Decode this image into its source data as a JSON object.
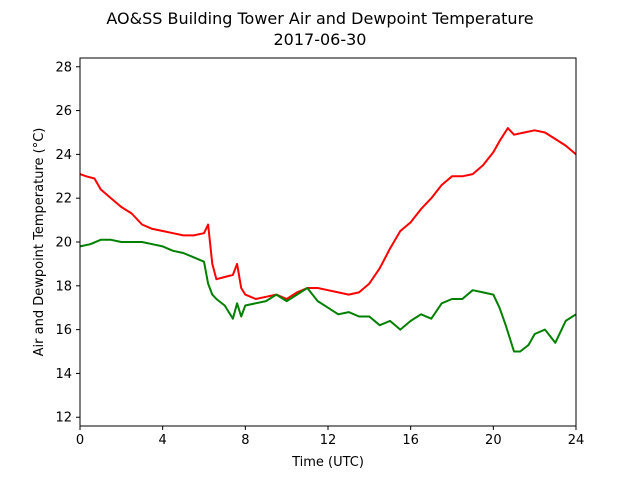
{
  "chart_data": {
    "type": "line",
    "title": "AO&SS Building Tower Air and Dewpoint Temperature",
    "subtitle": "2017-06-30",
    "xlabel": "Time (UTC)",
    "ylabel": "Air and Dewpoint Temperature (°C)",
    "xlim": [
      0,
      24
    ],
    "ylim": [
      11.6,
      28.4
    ],
    "xticks": [
      0,
      4,
      8,
      12,
      16,
      20,
      24
    ],
    "yticks": [
      12,
      14,
      16,
      18,
      20,
      22,
      24,
      26,
      28
    ],
    "grid": false,
    "series": [
      {
        "color": "#ff0000",
        "x": [
          0,
          0.3,
          0.7,
          1,
          1.5,
          2,
          2.5,
          3,
          3.5,
          4,
          4.5,
          5,
          5.5,
          6,
          6.2,
          6.4,
          6.6,
          7,
          7.4,
          7.6,
          7.8,
          8,
          8.5,
          9,
          9.5,
          10,
          10.5,
          11,
          11.5,
          12,
          12.5,
          13,
          13.5,
          14,
          14.5,
          15,
          15.5,
          16,
          16.5,
          17,
          17.5,
          18,
          18.5,
          19,
          19.5,
          20,
          20.3,
          20.7,
          21,
          21.5,
          22,
          22.5,
          23,
          23.5,
          24
        ],
        "values": [
          23.1,
          23.0,
          22.9,
          22.4,
          22.0,
          21.6,
          21.3,
          20.8,
          20.6,
          20.5,
          20.4,
          20.3,
          20.3,
          20.4,
          20.8,
          19.0,
          18.3,
          18.4,
          18.5,
          19.0,
          17.9,
          17.6,
          17.4,
          17.5,
          17.6,
          17.4,
          17.7,
          17.9,
          17.9,
          17.8,
          17.7,
          17.6,
          17.7,
          18.1,
          18.8,
          19.7,
          20.5,
          20.9,
          21.5,
          22.0,
          22.6,
          23.0,
          23.0,
          23.1,
          23.5,
          24.1,
          24.6,
          25.2,
          24.9,
          25.0,
          25.1,
          25.0,
          24.7,
          24.4,
          24.0
        ]
      },
      {
        "color": "#008000",
        "x": [
          0,
          0.5,
          1,
          1.5,
          2,
          2.5,
          3,
          3.5,
          4,
          4.5,
          5,
          5.5,
          6,
          6.2,
          6.4,
          6.6,
          7,
          7.4,
          7.6,
          7.8,
          8,
          8.5,
          9,
          9.5,
          10,
          10.5,
          11,
          11.5,
          12,
          12.5,
          13,
          13.5,
          14,
          14.5,
          15,
          15.5,
          16,
          16.5,
          17,
          17.5,
          18,
          18.5,
          19,
          19.5,
          20,
          20.3,
          20.6,
          21,
          21.3,
          21.7,
          22,
          22.5,
          23,
          23.5,
          24
        ],
        "values": [
          19.8,
          19.9,
          20.1,
          20.1,
          20.0,
          20.0,
          20.0,
          19.9,
          19.8,
          19.6,
          19.5,
          19.3,
          19.1,
          18.1,
          17.6,
          17.4,
          17.1,
          16.5,
          17.2,
          16.6,
          17.1,
          17.2,
          17.3,
          17.6,
          17.3,
          17.6,
          17.9,
          17.3,
          17.0,
          16.7,
          16.8,
          16.6,
          16.6,
          16.2,
          16.4,
          16.0,
          16.4,
          16.7,
          16.5,
          17.2,
          17.4,
          17.4,
          17.8,
          17.7,
          17.6,
          17.0,
          16.2,
          15.0,
          15.0,
          15.3,
          15.8,
          16.0,
          15.4,
          16.4,
          16.7
        ]
      }
    ]
  }
}
